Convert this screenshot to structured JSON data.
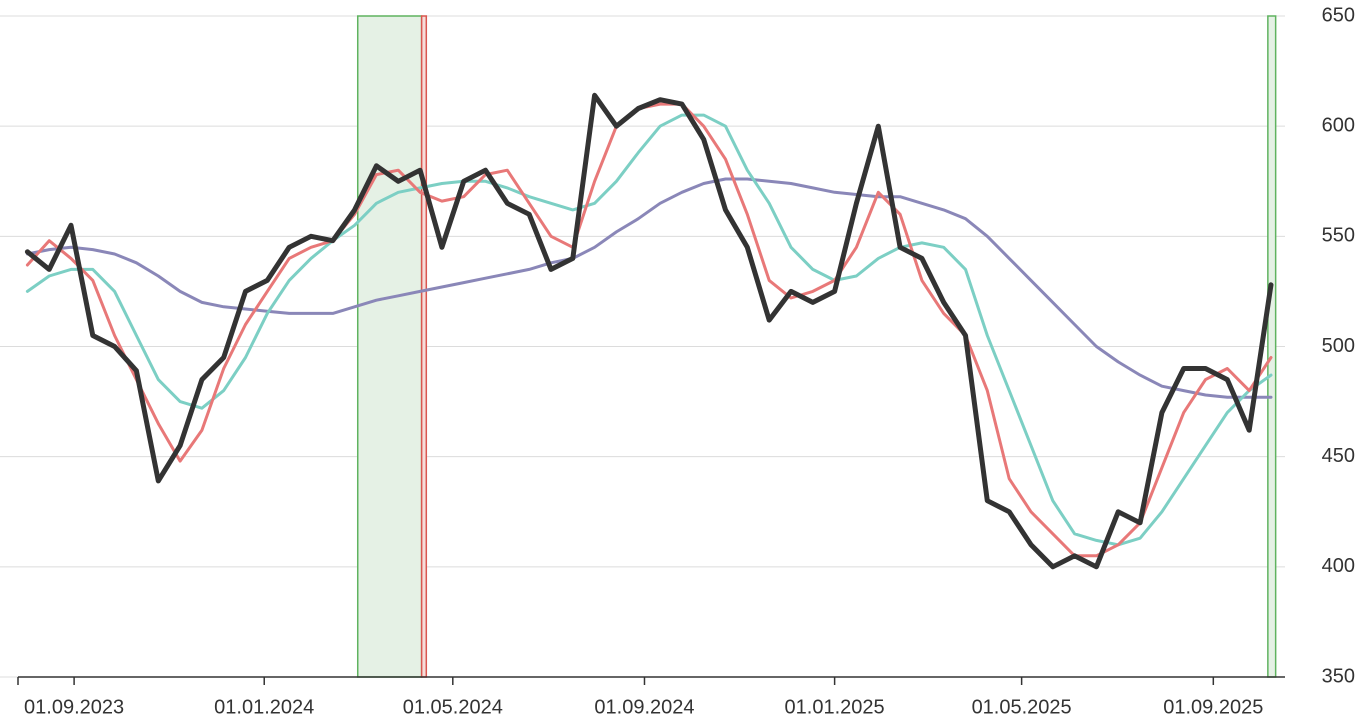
{
  "chart_data": {
    "type": "line",
    "x": [
      "2023-08-02",
      "2023-08-16",
      "2023-08-30",
      "2023-09-13",
      "2023-09-27",
      "2023-10-11",
      "2023-10-25",
      "2023-11-08",
      "2023-11-22",
      "2023-12-06",
      "2023-12-20",
      "2024-01-03",
      "2024-01-17",
      "2024-01-31",
      "2024-02-14",
      "2024-02-28",
      "2024-03-13",
      "2024-03-27",
      "2024-04-10",
      "2024-04-24",
      "2024-05-08",
      "2024-05-22",
      "2024-06-05",
      "2024-06-19",
      "2024-07-03",
      "2024-07-17",
      "2024-07-31",
      "2024-08-14",
      "2024-08-28",
      "2024-09-11",
      "2024-09-25",
      "2024-10-09",
      "2024-10-23",
      "2024-11-06",
      "2024-11-20",
      "2024-12-04",
      "2024-12-18",
      "2025-01-01",
      "2025-01-15",
      "2025-01-29",
      "2025-02-12",
      "2025-02-26",
      "2025-03-12",
      "2025-03-26",
      "2025-04-09",
      "2025-04-23",
      "2025-05-07",
      "2025-05-21",
      "2025-06-04",
      "2025-06-18",
      "2025-07-02",
      "2025-07-16",
      "2025-07-30",
      "2025-08-13",
      "2025-08-27",
      "2025-09-10",
      "2025-09-24",
      "2025-10-08"
    ],
    "series": [
      {
        "color": "#8a87b8",
        "width": 3,
        "values": [
          542,
          544,
          545,
          544,
          542,
          538,
          532,
          525,
          520,
          518,
          517,
          516,
          515,
          515,
          515,
          518,
          521,
          523,
          525,
          527,
          529,
          531,
          533,
          535,
          538,
          540,
          545,
          552,
          558,
          565,
          570,
          574,
          576,
          576,
          575,
          574,
          572,
          570,
          569,
          568,
          568,
          565,
          562,
          558,
          550,
          540,
          530,
          520,
          510,
          500,
          493,
          487,
          482,
          480,
          478,
          477,
          477,
          477
        ]
      },
      {
        "color": "#7ccfc4",
        "width": 3,
        "values": [
          525,
          532,
          535,
          535,
          525,
          505,
          485,
          475,
          472,
          480,
          495,
          515,
          530,
          540,
          548,
          555,
          565,
          570,
          572,
          574,
          575,
          575,
          572,
          568,
          565,
          562,
          565,
          575,
          588,
          600,
          605,
          605,
          600,
          580,
          565,
          545,
          535,
          530,
          532,
          540,
          545,
          547,
          545,
          535,
          505,
          480,
          455,
          430,
          415,
          412,
          410,
          413,
          425,
          440,
          455,
          470,
          480,
          487
        ]
      },
      {
        "color": "#e87878",
        "width": 3,
        "values": [
          537,
          548,
          540,
          530,
          505,
          485,
          465,
          448,
          462,
          490,
          510,
          525,
          540,
          545,
          548,
          560,
          578,
          580,
          570,
          566,
          568,
          578,
          580,
          565,
          550,
          545,
          575,
          600,
          608,
          610,
          610,
          600,
          585,
          560,
          530,
          522,
          525,
          530,
          545,
          570,
          560,
          530,
          515,
          505,
          480,
          440,
          425,
          415,
          405,
          405,
          410,
          420,
          445,
          470,
          485,
          490,
          480,
          495
        ]
      },
      {
        "color": "#333333",
        "width": 5,
        "values": [
          543,
          535,
          555,
          505,
          500,
          489,
          439,
          455,
          485,
          495,
          525,
          530,
          545,
          550,
          548,
          562,
          582,
          575,
          580,
          545,
          575,
          580,
          565,
          560,
          535,
          540,
          614,
          600,
          608,
          612,
          610,
          594,
          562,
          545,
          512,
          525,
          520,
          525,
          565,
          600,
          545,
          540,
          520,
          505,
          430,
          425,
          410,
          400,
          405,
          400,
          425,
          420,
          470,
          490,
          490,
          485,
          462,
          528
        ]
      }
    ],
    "regions": [
      {
        "start": "2024-03-01",
        "end": "2024-04-11",
        "color": "#5fb35f",
        "fill": "#e5f1e5"
      },
      {
        "start": "2024-04-11",
        "end": "2024-04-14",
        "color": "#d9564f",
        "fill": "#f6dcd8"
      },
      {
        "start": "2025-10-06",
        "end": "2025-10-11",
        "color": "#5fb35f",
        "fill": "#e5f1e5"
      }
    ],
    "xlim": [
      "2023-07-27",
      "2025-10-17"
    ],
    "xticks": [
      {
        "value": "2023-09-01",
        "label": "01.09.2023"
      },
      {
        "value": "2024-01-01",
        "label": "01.01.2024"
      },
      {
        "value": "2024-05-01",
        "label": "01.05.2024"
      },
      {
        "value": "2024-09-01",
        "label": "01.09.2024"
      },
      {
        "value": "2025-01-01",
        "label": "01.01.2025"
      },
      {
        "value": "2025-05-01",
        "label": "01.05.2025"
      },
      {
        "value": "2025-09-01",
        "label": "01.09.2025"
      }
    ],
    "ylim": [
      350,
      650
    ],
    "yticks": [
      350,
      400,
      450,
      500,
      550,
      600,
      650
    ],
    "grid": true
  }
}
